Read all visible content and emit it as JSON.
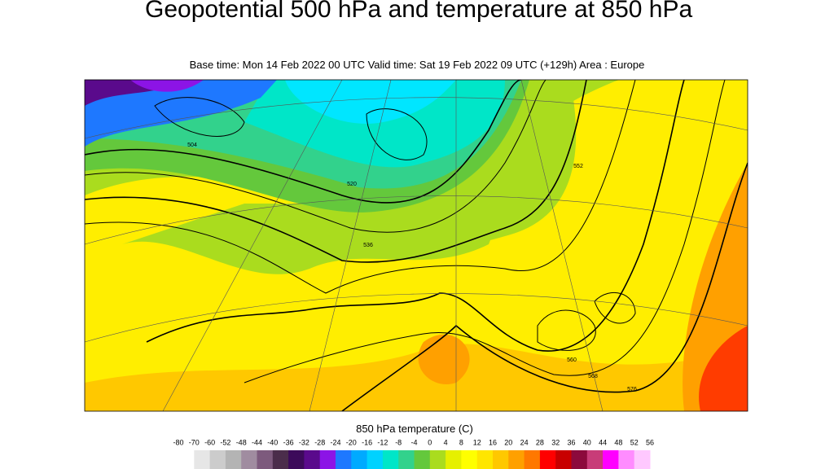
{
  "header": {
    "title": "Geopotential 500 hPa and temperature at 850 hPa",
    "subtitle": "Base time: Mon 14 Feb 2022 00 UTC Valid time: Sat 19 Feb 2022 09 UTC (+129h) Area : Europe"
  },
  "map": {
    "contour_labels": [
      "504",
      "520",
      "536",
      "552",
      "560",
      "568",
      "576"
    ]
  },
  "colorbar": {
    "title": "850 hPa temperature (C)",
    "ticks": [
      -80,
      -70,
      -60,
      -52,
      -48,
      -44,
      -40,
      -36,
      -32,
      -28,
      -24,
      -20,
      -16,
      -12,
      -8,
      -4,
      0,
      4,
      8,
      12,
      16,
      20,
      24,
      28,
      32,
      36,
      40,
      44,
      48,
      52,
      56
    ],
    "colors": [
      "#ffffff",
      "#e6e6e6",
      "#cccccc",
      "#b4b4b4",
      "#a08ca0",
      "#7d5a7d",
      "#4b2d4b",
      "#3c0a5a",
      "#5a0a8c",
      "#8c14e6",
      "#1e78ff",
      "#00aaff",
      "#00d2ff",
      "#00e6c8",
      "#32d28c",
      "#64c83c",
      "#aadc1e",
      "#e6f000",
      "#ffff00",
      "#ffe600",
      "#ffc800",
      "#ffa000",
      "#ff7800",
      "#ff0000",
      "#c80000",
      "#8c0a3c",
      "#c83c78",
      "#ff00ff",
      "#ff8cff",
      "#ffc8ff"
    ]
  }
}
